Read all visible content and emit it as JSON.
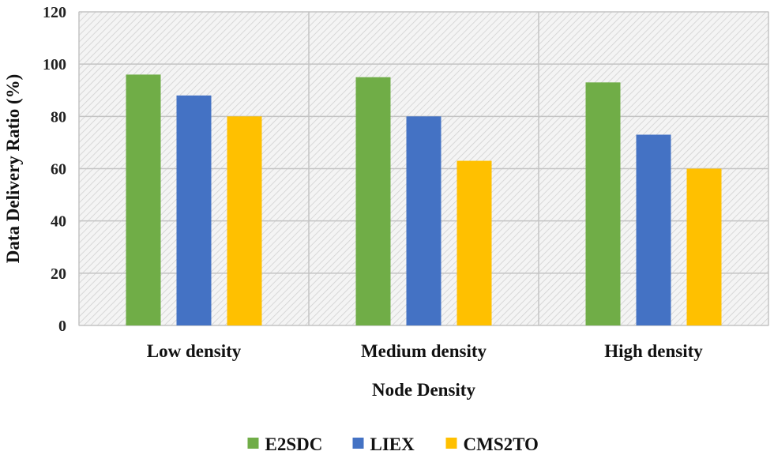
{
  "chart_data": {
    "type": "bar",
    "categories": [
      "Low density",
      "Medium density",
      "High density"
    ],
    "series": [
      {
        "name": "E2SDC",
        "values": [
          96,
          95,
          93
        ],
        "color": "#70ad47"
      },
      {
        "name": "LIEX",
        "values": [
          88,
          80,
          73
        ],
        "color": "#4472c4"
      },
      {
        "name": "CMS2TO",
        "values": [
          80,
          63,
          60
        ],
        "color": "#ffc000"
      }
    ],
    "xlabel": "Node Density",
    "ylabel": "Data Delivery Ratio (%)",
    "ylim": [
      0,
      120
    ],
    "yticks": [
      0,
      20,
      40,
      60,
      80,
      100,
      120
    ],
    "grid": true,
    "legend_position": "bottom"
  }
}
